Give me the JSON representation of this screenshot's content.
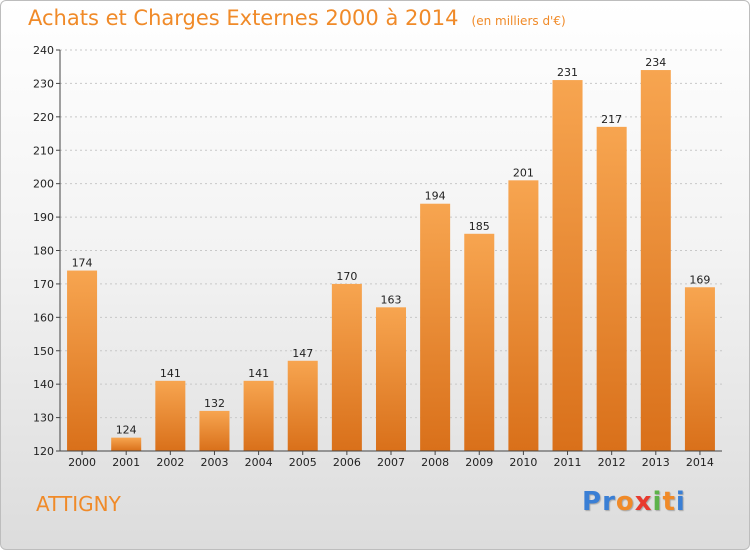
{
  "header": {
    "title": "Achats et Charges Externes 2000 à 2014",
    "subtitle": "(en milliers d'€)"
  },
  "footer": {
    "town": "ATTIGNY",
    "logo_letters": [
      "P",
      "r",
      "o",
      "x",
      "i",
      "t",
      "i"
    ],
    "logo_colors": [
      "#3a7fd5",
      "#3a7fd5",
      "#f08a28",
      "#e83a2e",
      "#5db34a",
      "#f08a28",
      "#3a7fd5"
    ]
  },
  "colors": {
    "accent": "#f08a28",
    "bar_top": "#f7a550",
    "bar_bottom": "#d9701a"
  },
  "chart_data": {
    "type": "bar",
    "title": "Achats et Charges Externes 2000 à 2014",
    "subtitle": "(en milliers d'€)",
    "categories": [
      "2000",
      "2001",
      "2002",
      "2003",
      "2004",
      "2005",
      "2006",
      "2007",
      "2008",
      "2009",
      "2010",
      "2011",
      "2012",
      "2013",
      "2014"
    ],
    "values": [
      174,
      124,
      141,
      132,
      141,
      147,
      170,
      163,
      194,
      185,
      201,
      231,
      217,
      234,
      169
    ],
    "ylim": [
      120,
      240
    ],
    "yticks": [
      120,
      130,
      140,
      150,
      160,
      170,
      180,
      190,
      200,
      210,
      220,
      230,
      240
    ],
    "xlabel": "",
    "ylabel": "",
    "grid": true
  }
}
